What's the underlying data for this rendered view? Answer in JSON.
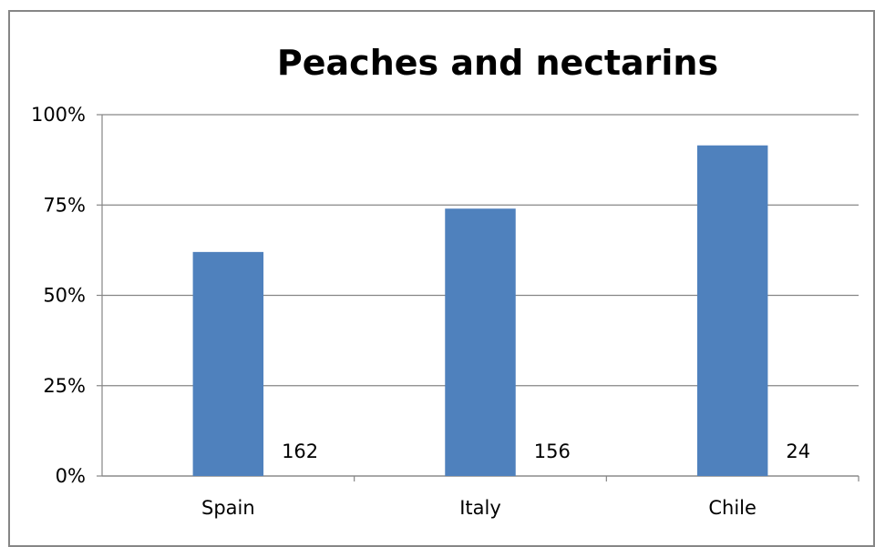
{
  "chart_data": {
    "type": "bar",
    "title": "Peaches and nectarins",
    "categories": [
      "Spain",
      "Italy",
      "Chile"
    ],
    "series": [
      {
        "values": [
          62,
          74,
          91.5
        ],
        "data_labels": [
          "162",
          "156",
          "24"
        ]
      }
    ],
    "ylim": [
      0,
      100
    ],
    "yticks": [
      0,
      25,
      50,
      75,
      100
    ],
    "ytick_labels": [
      "0%",
      "25%",
      "50%",
      "75%",
      "100%"
    ],
    "grid": true,
    "legend": "none",
    "colors": {
      "bar": "#4F81BD",
      "grid": "#868686",
      "axis": "#868686",
      "frame": "#868686"
    }
  }
}
